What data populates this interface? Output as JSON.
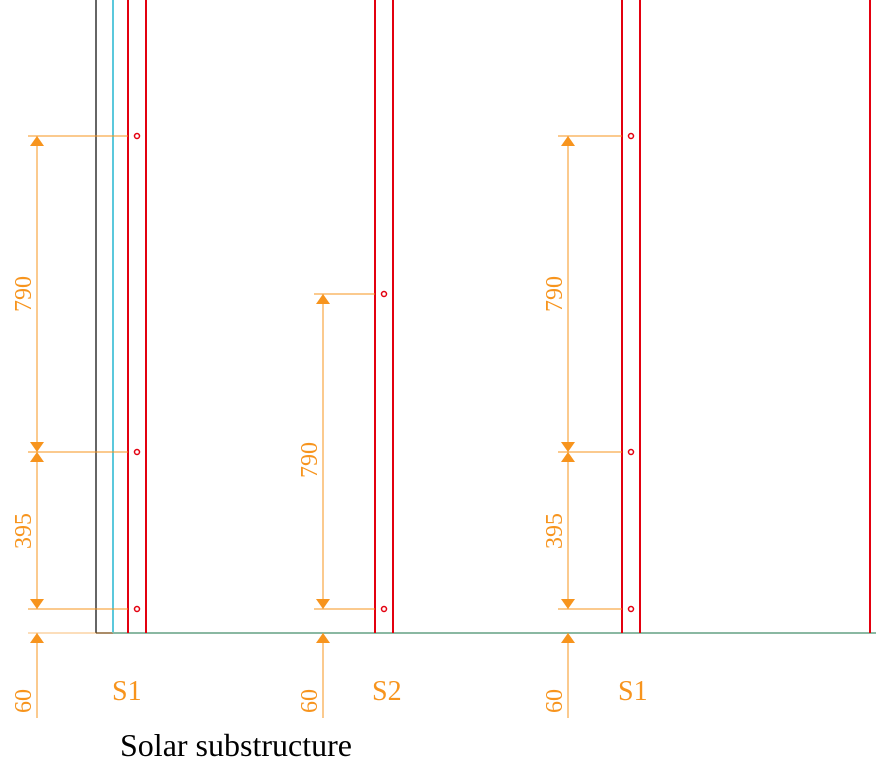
{
  "caption": "Solar substructure",
  "colors": {
    "rail": "#E3000F",
    "dimension": "#F7941D",
    "ground": "#5BC8DC",
    "outline": "#000000",
    "background": "#FFFFFF"
  },
  "dimensions": {
    "s1_left": {
      "upper": "790",
      "middle": "395",
      "base": "60"
    },
    "s2": {
      "upper": "790",
      "base": "60"
    },
    "s1_right": {
      "upper": "790",
      "middle": "395",
      "base": "60"
    }
  },
  "support_labels": {
    "s1_left": "S1",
    "s2": "S2",
    "s1_right": "S1"
  }
}
